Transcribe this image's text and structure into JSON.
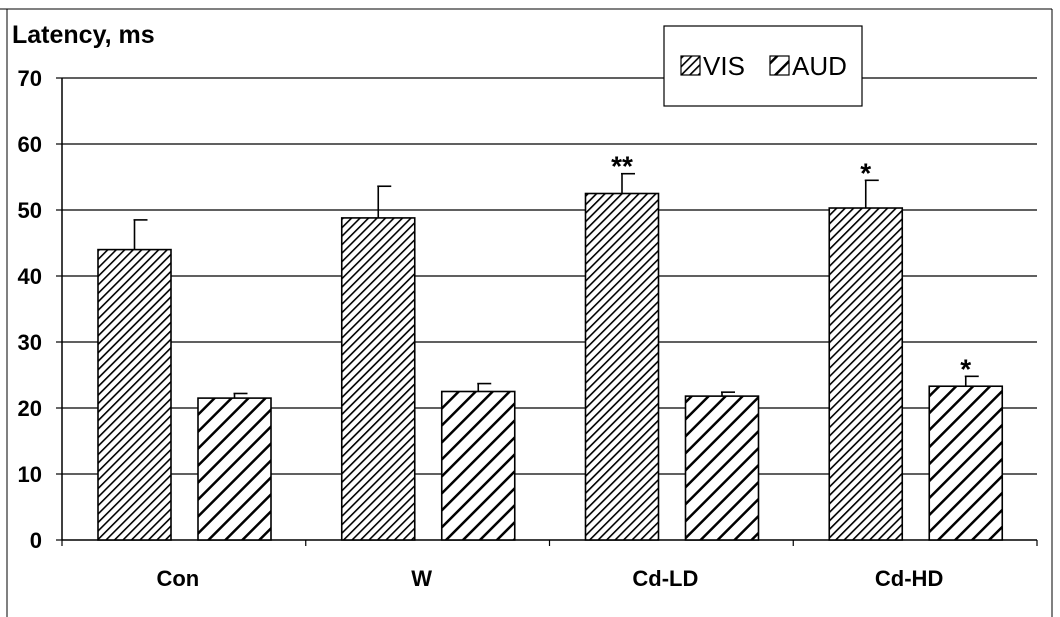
{
  "chart_data": {
    "type": "bar",
    "ylabel": "Latency, ms",
    "xlabel": "",
    "ylim": [
      0,
      70
    ],
    "yticks": [
      0,
      10,
      20,
      30,
      40,
      50,
      60,
      70
    ],
    "grid": true,
    "legend_position": "top-right",
    "categories": [
      "Con",
      "W",
      "Cd-LD",
      "Cd-HD"
    ],
    "series": [
      {
        "name": "VIS",
        "pattern": "dense-diagonal-hatch",
        "values": [
          44,
          48.8,
          52.5,
          50.3
        ],
        "errors": [
          4.5,
          4.8,
          3.0,
          4.2
        ]
      },
      {
        "name": "AUD",
        "pattern": "wide-diagonal-hatch",
        "values": [
          21.5,
          22.5,
          21.8,
          23.3
        ],
        "errors": [
          0.7,
          1.2,
          0.6,
          1.5
        ]
      }
    ],
    "annotations": [
      {
        "category": "Cd-LD",
        "series": "VIS",
        "text": "**"
      },
      {
        "category": "Cd-HD",
        "series": "VIS",
        "text": "*"
      },
      {
        "category": "Cd-HD",
        "series": "AUD",
        "text": "*"
      }
    ],
    "colors": {
      "bar_fill": "#ffffff",
      "hatch": "#000000",
      "grid": "#000000",
      "axis": "#000000"
    }
  }
}
